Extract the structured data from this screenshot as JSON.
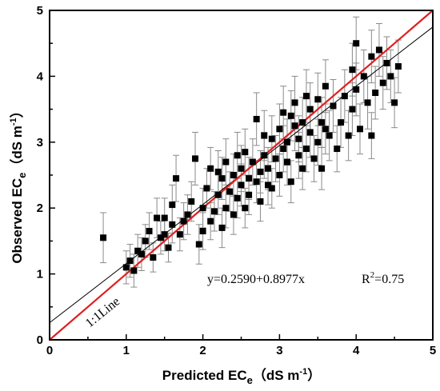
{
  "chart_data": {
    "type": "scatter",
    "title": "",
    "xlabel": {
      "main": "Predicted EC",
      "sub": "e",
      "unit_open": "（dS m",
      "sup": "-1",
      "unit_close": "）"
    },
    "ylabel": {
      "main": "Observed EC",
      "sub": "e",
      "unit_open": "（dS m",
      "sup": "-1",
      "unit_close": "）"
    },
    "xlim": [
      0,
      5
    ],
    "ylim": [
      0,
      5
    ],
    "xticks": [
      "0",
      "1",
      "2",
      "3",
      "4",
      "5"
    ],
    "yticks": [
      "0",
      "1",
      "2",
      "3",
      "4",
      "5"
    ],
    "grid": false,
    "legend": "none",
    "colors": {
      "points": "#000000",
      "one_to_one": "#e02020",
      "regression": "#000000",
      "errorbar": "#8a8a8a"
    },
    "regression": {
      "intercept": 0.259,
      "slope": 0.8977,
      "r2": 0.75
    },
    "equation_text": "y=0.2590+0.8977x",
    "r2_prefix": "R",
    "r2_sup": "2",
    "r2_value": "=0.75",
    "one_to_one_label": "1:1Line",
    "points": [
      [
        0.7,
        1.55,
        0.38
      ],
      [
        1.0,
        1.1,
        0.25
      ],
      [
        1.05,
        1.2,
        0.25
      ],
      [
        1.1,
        1.05,
        0.25
      ],
      [
        1.15,
        1.35,
        0.25
      ],
      [
        1.25,
        1.5,
        0.25
      ],
      [
        1.3,
        1.65,
        0.28
      ],
      [
        1.35,
        1.25,
        0.22
      ],
      [
        1.4,
        1.85,
        0.3
      ],
      [
        1.45,
        1.55,
        0.25
      ],
      [
        1.5,
        1.6,
        0.25
      ],
      [
        1.5,
        1.85,
        0.3
      ],
      [
        1.55,
        1.4,
        0.22
      ],
      [
        1.6,
        2.05,
        0.3
      ],
      [
        1.65,
        2.45,
        0.35
      ],
      [
        1.7,
        1.6,
        0.25
      ],
      [
        1.75,
        1.8,
        0.28
      ],
      [
        1.8,
        1.9,
        0.3
      ],
      [
        1.85,
        2.1,
        0.3
      ],
      [
        1.9,
        2.75,
        0.4
      ],
      [
        1.95,
        1.45,
        0.3
      ],
      [
        2.0,
        1.65,
        0.28
      ],
      [
        2.0,
        2.0,
        0.3
      ],
      [
        2.05,
        2.3,
        0.3
      ],
      [
        2.1,
        2.6,
        0.32
      ],
      [
        2.1,
        1.8,
        0.28
      ],
      [
        2.15,
        1.95,
        0.3
      ],
      [
        2.2,
        2.2,
        0.3
      ],
      [
        2.25,
        2.45,
        0.32
      ],
      [
        2.25,
        1.7,
        0.3
      ],
      [
        2.3,
        2.0,
        0.3
      ],
      [
        2.3,
        2.7,
        0.35
      ],
      [
        2.35,
        2.25,
        0.3
      ],
      [
        2.4,
        2.5,
        0.32
      ],
      [
        2.4,
        1.9,
        0.3
      ],
      [
        2.45,
        2.15,
        0.3
      ],
      [
        2.5,
        2.6,
        0.35
      ],
      [
        2.5,
        2.35,
        0.32
      ],
      [
        2.55,
        2.0,
        0.3
      ],
      [
        2.55,
        2.85,
        0.35
      ],
      [
        2.6,
        2.45,
        0.32
      ],
      [
        2.6,
        2.2,
        0.3
      ],
      [
        2.65,
        2.7,
        0.35
      ],
      [
        2.7,
        3.35,
        0.4
      ],
      [
        2.7,
        2.4,
        0.32
      ],
      [
        2.75,
        2.55,
        0.32
      ],
      [
        2.75,
        2.1,
        0.3
      ],
      [
        2.8,
        2.8,
        0.35
      ],
      [
        2.8,
        3.1,
        0.38
      ],
      [
        2.85,
        2.6,
        0.32
      ],
      [
        2.9,
        3.05,
        0.35
      ],
      [
        2.9,
        2.3,
        0.3
      ],
      [
        2.95,
        2.75,
        0.35
      ],
      [
        3.0,
        3.2,
        0.38
      ],
      [
        3.0,
        2.5,
        0.32
      ],
      [
        3.05,
        2.9,
        0.35
      ],
      [
        3.05,
        3.45,
        0.4
      ],
      [
        3.1,
        2.7,
        0.35
      ],
      [
        3.1,
        3.0,
        0.35
      ],
      [
        3.15,
        2.4,
        0.32
      ],
      [
        3.2,
        3.25,
        0.38
      ],
      [
        3.2,
        3.6,
        0.4
      ],
      [
        3.25,
        2.8,
        0.35
      ],
      [
        3.25,
        3.05,
        0.35
      ],
      [
        3.3,
        2.6,
        0.32
      ],
      [
        3.3,
        3.3,
        0.38
      ],
      [
        3.35,
        2.9,
        0.35
      ],
      [
        3.4,
        3.5,
        0.4
      ],
      [
        3.4,
        3.15,
        0.38
      ],
      [
        3.45,
        2.75,
        0.35
      ],
      [
        3.5,
        3.0,
        0.35
      ],
      [
        3.5,
        3.65,
        0.4
      ],
      [
        3.55,
        3.3,
        0.38
      ],
      [
        3.55,
        2.6,
        0.32
      ],
      [
        3.6,
        3.85,
        0.4
      ],
      [
        3.65,
        3.1,
        0.38
      ],
      [
        3.7,
        3.55,
        0.4
      ],
      [
        3.75,
        2.9,
        0.35
      ],
      [
        3.8,
        3.3,
        0.38
      ],
      [
        3.85,
        3.7,
        0.4
      ],
      [
        3.9,
        3.1,
        0.38
      ],
      [
        3.95,
        3.5,
        0.4
      ],
      [
        4.0,
        4.5,
        0.4
      ],
      [
        4.0,
        3.8,
        0.4
      ],
      [
        4.05,
        3.2,
        0.38
      ],
      [
        4.1,
        4.0,
        0.4
      ],
      [
        4.15,
        3.6,
        0.4
      ],
      [
        4.2,
        4.3,
        0.4
      ],
      [
        4.2,
        3.1,
        0.35
      ],
      [
        4.25,
        3.75,
        0.4
      ],
      [
        4.3,
        4.4,
        0.4
      ],
      [
        4.35,
        3.9,
        0.4
      ],
      [
        4.4,
        4.2,
        0.4
      ],
      [
        4.45,
        4.0,
        0.4
      ],
      [
        4.5,
        3.6,
        0.38
      ],
      [
        4.55,
        4.15,
        0.4
      ],
      [
        1.2,
        1.3,
        0.25
      ],
      [
        1.6,
        1.75,
        0.28
      ],
      [
        2.2,
        2.55,
        0.32
      ],
      [
        2.45,
        2.8,
        0.35
      ],
      [
        2.85,
        2.35,
        0.3
      ],
      [
        3.15,
        3.4,
        0.38
      ],
      [
        3.35,
        3.7,
        0.4
      ],
      [
        3.6,
        3.2,
        0.38
      ],
      [
        3.95,
        4.1,
        0.4
      ]
    ]
  }
}
